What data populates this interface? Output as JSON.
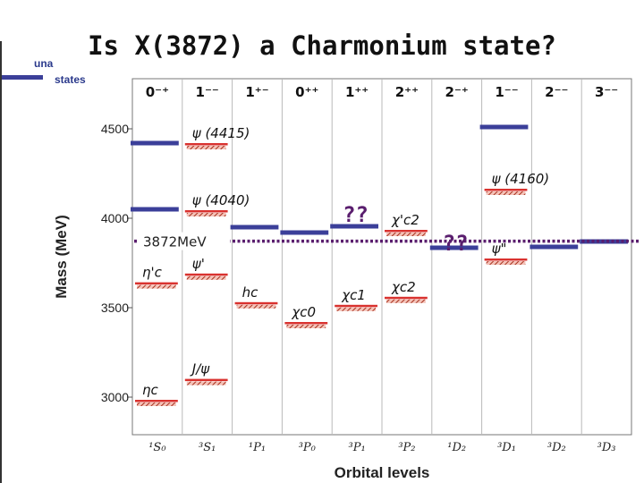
{
  "title": "Is X(3872) a Charmonium state?",
  "legend": {
    "label_top": "una",
    "label_bottom": "states",
    "color": "#3b3f99"
  },
  "chart_data": {
    "type": "level-diagram",
    "ylabel": "Mass (MeV)",
    "xlabel": "Orbital levels",
    "ylim": [
      2800,
      4720
    ],
    "yticks": [
      3000,
      3500,
      4000,
      4500
    ],
    "columns": [
      {
        "jpc": "0⁻⁺",
        "orbital": "¹S₀"
      },
      {
        "jpc": "1⁻⁻",
        "orbital": "³S₁"
      },
      {
        "jpc": "1⁺⁻",
        "orbital": "¹P₁"
      },
      {
        "jpc": "0⁺⁺",
        "orbital": "³P₀"
      },
      {
        "jpc": "1⁺⁺",
        "orbital": "³P₁"
      },
      {
        "jpc": "2⁺⁺",
        "orbital": "³P₂"
      },
      {
        "jpc": "2⁻⁺",
        "orbital": "¹D₂"
      },
      {
        "jpc": "1⁻⁻",
        "orbital": "³D₁"
      },
      {
        "jpc": "2⁻⁻",
        "orbital": "³D₂"
      },
      {
        "jpc": "3⁻⁻",
        "orbital": "³D₃"
      }
    ],
    "observed_states": [
      {
        "column": 0,
        "mass": 2980,
        "label": "ηc"
      },
      {
        "column": 0,
        "mass": 3637,
        "label": "η'c"
      },
      {
        "column": 1,
        "mass": 3097,
        "label": "J/ψ"
      },
      {
        "column": 1,
        "mass": 3686,
        "label": "ψ'"
      },
      {
        "column": 1,
        "mass": 4040,
        "label": "ψ (4040)"
      },
      {
        "column": 1,
        "mass": 4415,
        "label": "ψ (4415)"
      },
      {
        "column": 2,
        "mass": 3526,
        "label": "hc"
      },
      {
        "column": 3,
        "mass": 3415,
        "label": "χc0"
      },
      {
        "column": 4,
        "mass": 3511,
        "label": "χc1"
      },
      {
        "column": 5,
        "mass": 3556,
        "label": "χc2"
      },
      {
        "column": 5,
        "mass": 3930,
        "label": "χ'c2"
      },
      {
        "column": 7,
        "mass": 3770,
        "label": "ψ\""
      },
      {
        "column": 7,
        "mass": 4160,
        "label": "ψ (4160)"
      }
    ],
    "unobserved_states": [
      {
        "column": 0,
        "mass": 4420
      },
      {
        "column": 0,
        "mass": 4050
      },
      {
        "column": 2,
        "mass": 3950
      },
      {
        "column": 3,
        "mass": 3920
      },
      {
        "column": 4,
        "mass": 3955
      },
      {
        "column": 6,
        "mass": 3835
      },
      {
        "column": 7,
        "mass": 4510
      },
      {
        "column": 8,
        "mass": 3840
      },
      {
        "column": 9,
        "mass": 3870
      }
    ],
    "x3872_line": {
      "mass": 3872,
      "label": "3872MeV",
      "color": "#5a1e6e"
    },
    "question_marks": [
      {
        "text": "??",
        "column": 4,
        "mass": 4040
      },
      {
        "text": "??",
        "column": 6,
        "mass": 3880
      }
    ],
    "colors": {
      "observed": "#d9322f",
      "predicted_hatch": "#c0392b",
      "unobserved": "#3b3f99",
      "grid": "#b9b9b9",
      "question_marks": "#5a1e6e"
    }
  }
}
